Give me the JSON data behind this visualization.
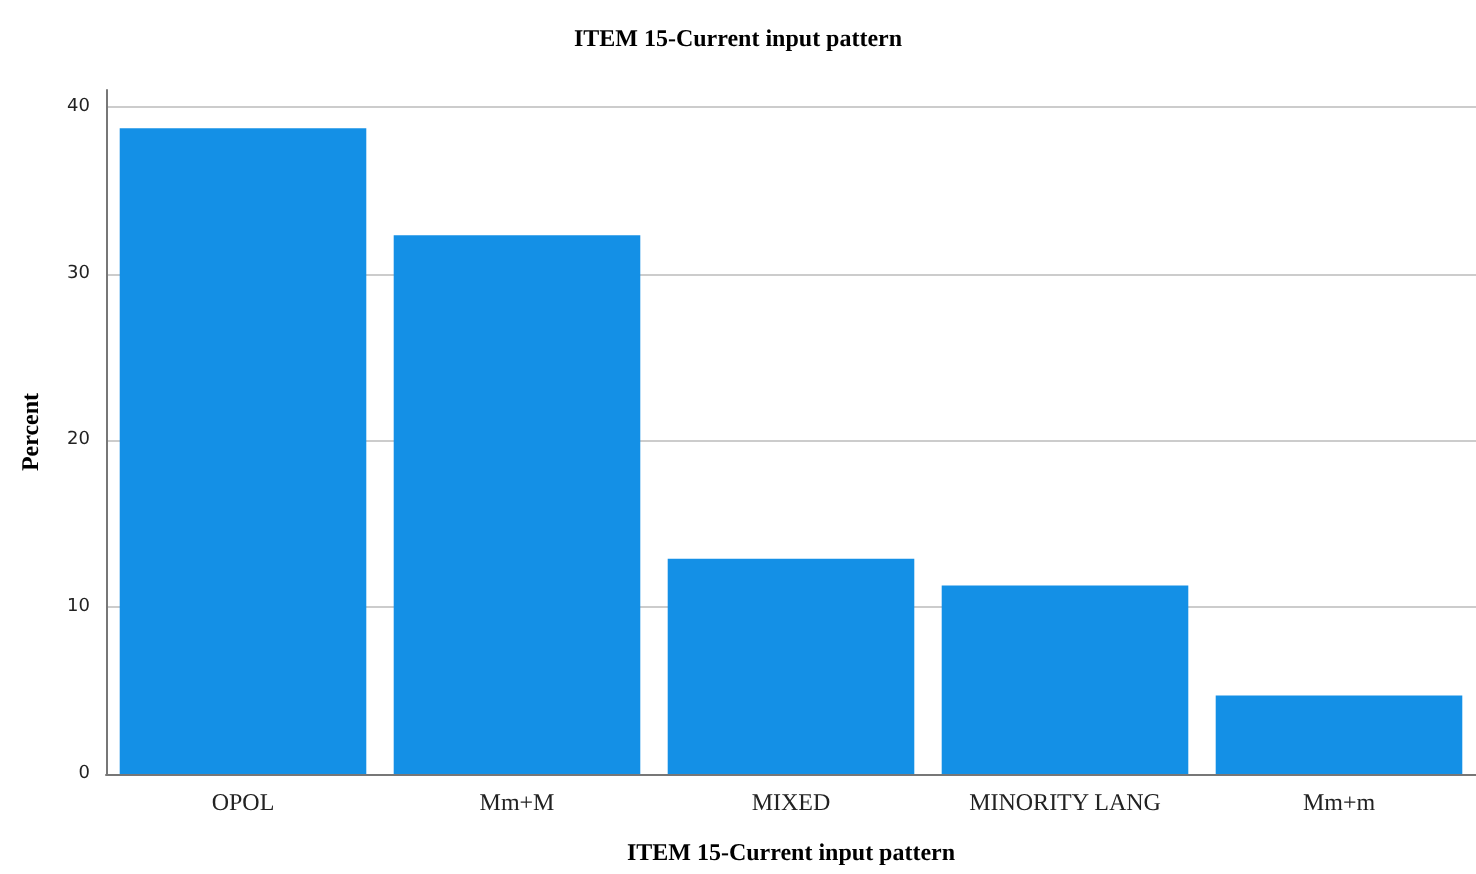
{
  "chart_data": {
    "type": "bar",
    "title": "ITEM 15-Current input pattern",
    "xlabel": "ITEM 15-Current input pattern",
    "ylabel": "Percent",
    "categories": [
      "OPOL",
      "Mm+M",
      "MIXED",
      "MINORITY LANG",
      "Mm+m"
    ],
    "values": [
      38.7,
      32.3,
      12.9,
      11.3,
      4.7
    ],
    "color": "#1490e6",
    "ylim": [
      0,
      41
    ],
    "yticks": [
      0,
      10,
      20,
      30,
      40
    ],
    "grid": "y"
  }
}
